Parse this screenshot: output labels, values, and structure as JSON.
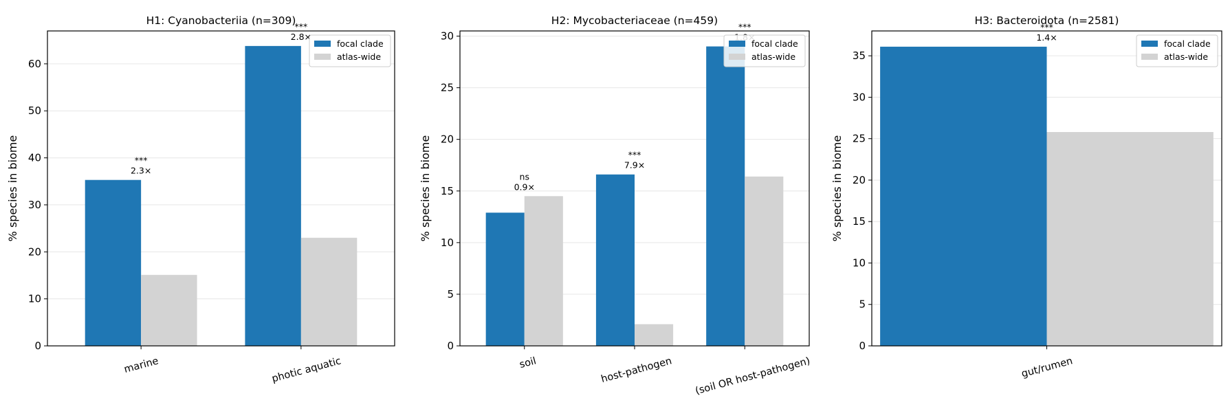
{
  "colors": {
    "focal": "#1f77b4",
    "atlas": "#d3d3d3",
    "grid": "#e6e6e6",
    "axis": "#000000"
  },
  "chart_data": [
    {
      "type": "bar",
      "title": "H1: Cyanobacteriia (n=309)",
      "ylabel": "% species in biome",
      "xlabel": "",
      "ylim": [
        0,
        67
      ],
      "yticks": [
        0,
        10,
        20,
        30,
        40,
        50,
        60
      ],
      "grid": "y",
      "legend": "top-right",
      "categories": [
        "marine",
        "photic aquatic"
      ],
      "series": [
        {
          "name": "focal clade",
          "values": [
            35.3,
            63.8
          ]
        },
        {
          "name": "atlas-wide",
          "values": [
            15.1,
            23.0
          ]
        }
      ],
      "annotations": [
        {
          "category": "marine",
          "sig": "***",
          "ratio": "2.3×"
        },
        {
          "category": "photic aquatic",
          "sig": "***",
          "ratio": "2.8×"
        }
      ]
    },
    {
      "type": "bar",
      "title": "H2: Mycobacteriaceae (n=459)",
      "ylabel": "% species in biome",
      "xlabel": "",
      "ylim": [
        0,
        30.5
      ],
      "yticks": [
        0,
        5,
        10,
        15,
        20,
        25,
        30
      ],
      "grid": "y",
      "legend": "top-right",
      "categories": [
        "soil",
        "host-pathogen",
        "(soil OR host-pathogen)"
      ],
      "series": [
        {
          "name": "focal clade",
          "values": [
            12.9,
            16.6,
            29.0
          ]
        },
        {
          "name": "atlas-wide",
          "values": [
            14.5,
            2.1,
            16.4
          ]
        }
      ],
      "annotations": [
        {
          "category": "soil",
          "sig": "ns",
          "ratio": "0.9×"
        },
        {
          "category": "host-pathogen",
          "sig": "***",
          "ratio": "7.9×"
        },
        {
          "category": "(soil OR host-pathogen)",
          "sig": "***",
          "ratio": "1.8×"
        }
      ]
    },
    {
      "type": "bar",
      "title": "H3: Bacteroidota (n=2581)",
      "ylabel": "% species in biome",
      "xlabel": "",
      "ylim": [
        0,
        38
      ],
      "yticks": [
        0,
        5,
        10,
        15,
        20,
        25,
        30,
        35
      ],
      "grid": "y",
      "legend": "top-right",
      "categories": [
        "gut/rumen"
      ],
      "series": [
        {
          "name": "focal clade",
          "values": [
            36.1
          ]
        },
        {
          "name": "atlas-wide",
          "values": [
            25.8
          ]
        }
      ],
      "annotations": [
        {
          "category": "gut/rumen",
          "sig": "***",
          "ratio": "1.4×"
        }
      ]
    }
  ]
}
